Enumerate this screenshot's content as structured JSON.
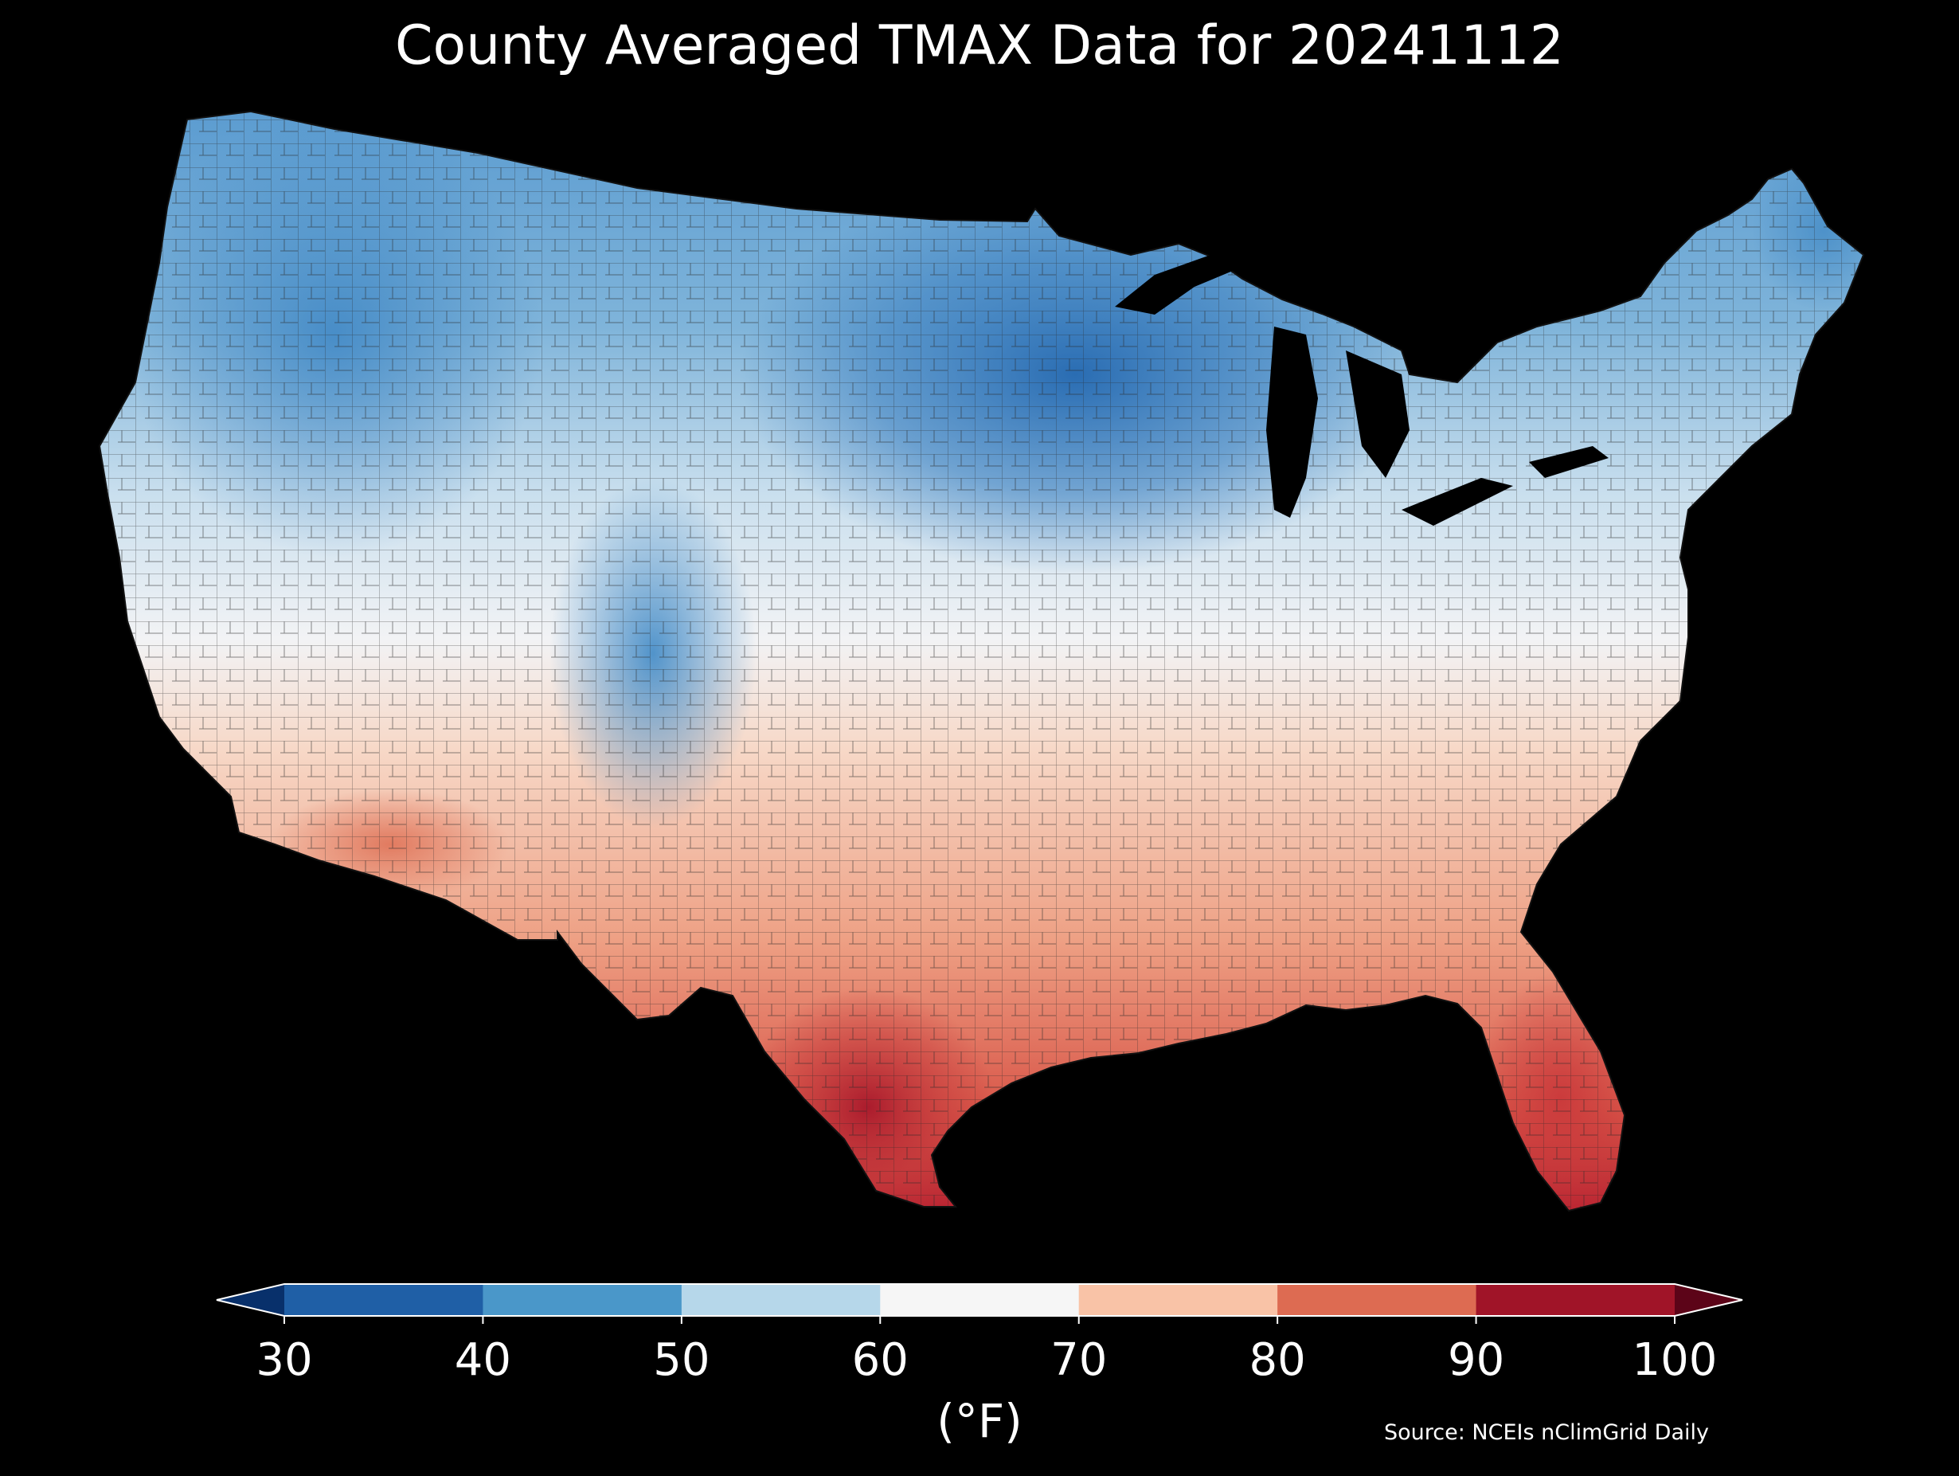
{
  "title": "County Averaged TMAX Data for 20241112",
  "colorbar": {
    "unit_label": "(°F)",
    "ticks": [
      "30",
      "40",
      "50",
      "60",
      "70",
      "80",
      "90",
      "100"
    ],
    "extend": "both",
    "bins": [
      {
        "range": "<30",
        "color": "#08306b"
      },
      {
        "range": "30-40",
        "color": "#1f5fa6"
      },
      {
        "range": "40-50",
        "color": "#4a97c9"
      },
      {
        "range": "50-60",
        "color": "#b6d7ea"
      },
      {
        "range": "60-70",
        "color": "#f6f6f6"
      },
      {
        "range": "70-80",
        "color": "#f9c3a7"
      },
      {
        "range": "80-90",
        "color": "#dd6b52"
      },
      {
        "range": "90-100",
        "color": "#a01428"
      },
      {
        "range": ">100",
        "color": "#5c0418"
      }
    ]
  },
  "source": "Source: NCEIs nClimGrid Daily",
  "map": {
    "region": "Contiguous United States",
    "variable": "TMAX",
    "units": "°F",
    "background": "#000000",
    "county_borders": "#2a2a2a"
  }
}
